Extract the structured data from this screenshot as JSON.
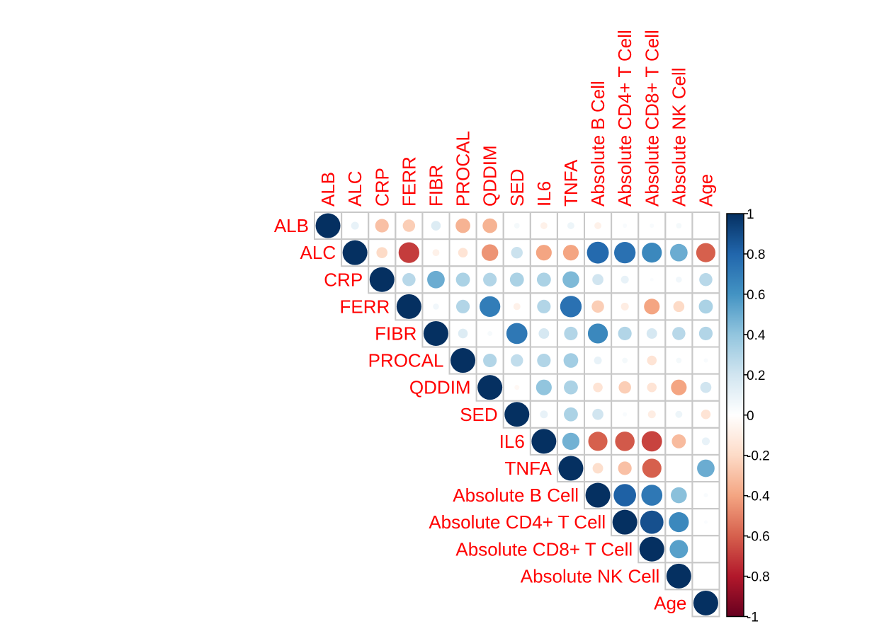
{
  "chart_data": {
    "type": "heatmap",
    "style": "circle",
    "layout": "upper-triangle",
    "variables": [
      "ALB",
      "ALC",
      "CRP",
      "FERR",
      "FIBR",
      "PROCAL",
      "QDDIM",
      "SED",
      "IL6",
      "TNFA",
      "Absolute B Cell",
      "Absolute CD4+ T Cell",
      "Absolute CD8+ T Cell",
      "Absolute NK Cell",
      "Age"
    ],
    "matrix": [
      [
        1.0,
        0.1,
        -0.3,
        -0.25,
        0.15,
        -0.35,
        -0.35,
        0.05,
        -0.08,
        0.08,
        -0.08,
        0.03,
        0.03,
        0.05,
        0.0
      ],
      [
        null,
        1.0,
        -0.2,
        -0.7,
        -0.08,
        -0.15,
        -0.45,
        0.22,
        -0.4,
        -0.4,
        0.78,
        0.75,
        0.65,
        0.5,
        -0.6
      ],
      [
        null,
        null,
        1.0,
        0.28,
        0.5,
        0.32,
        0.3,
        0.32,
        0.32,
        0.45,
        0.2,
        0.1,
        0.02,
        0.06,
        0.28
      ],
      [
        null,
        null,
        null,
        1.0,
        0.06,
        0.3,
        0.7,
        -0.08,
        0.3,
        0.75,
        -0.25,
        -0.1,
        -0.4,
        -0.2,
        0.32
      ],
      [
        null,
        null,
        null,
        null,
        1.0,
        0.15,
        0.04,
        0.72,
        0.18,
        0.3,
        0.65,
        0.3,
        0.18,
        0.28,
        0.3
      ],
      [
        null,
        null,
        null,
        null,
        null,
        1.0,
        0.3,
        0.25,
        0.3,
        0.35,
        0.1,
        0.05,
        -0.15,
        0.05,
        0.03
      ],
      [
        null,
        null,
        null,
        null,
        null,
        null,
        1.0,
        -0.04,
        0.4,
        0.32,
        -0.15,
        -0.25,
        -0.15,
        -0.4,
        0.2
      ],
      [
        null,
        null,
        null,
        null,
        null,
        null,
        null,
        1.0,
        0.1,
        0.32,
        0.2,
        0.03,
        -0.1,
        0.08,
        -0.15
      ],
      [
        null,
        null,
        null,
        null,
        null,
        null,
        null,
        null,
        1.0,
        0.48,
        -0.6,
        -0.62,
        -0.68,
        -0.32,
        0.1
      ],
      [
        null,
        null,
        null,
        null,
        null,
        null,
        null,
        null,
        null,
        1.0,
        -0.18,
        -0.3,
        -0.6,
        0.0,
        0.5
      ],
      [
        null,
        null,
        null,
        null,
        null,
        null,
        null,
        null,
        null,
        null,
        1.0,
        0.82,
        0.72,
        0.42,
        0.03
      ],
      [
        null,
        null,
        null,
        null,
        null,
        null,
        null,
        null,
        null,
        null,
        null,
        1.0,
        0.88,
        0.65,
        0.02
      ],
      [
        null,
        null,
        null,
        null,
        null,
        null,
        null,
        null,
        null,
        null,
        null,
        null,
        1.0,
        0.55,
        0.0
      ],
      [
        null,
        null,
        null,
        null,
        null,
        null,
        null,
        null,
        null,
        null,
        null,
        null,
        null,
        1.0,
        0.0
      ],
      [
        null,
        null,
        null,
        null,
        null,
        null,
        null,
        null,
        null,
        null,
        null,
        null,
        null,
        null,
        1.0
      ]
    ],
    "color_range": [
      -1,
      1
    ],
    "colorbar_ticks": [
      "1",
      "0.8",
      "0.6",
      "0.4",
      "0.2",
      "0",
      "-0.2",
      "-0.4",
      "-0.6",
      "-0.8",
      "-1"
    ],
    "colorbar_tick_values": [
      1,
      0.8,
      0.6,
      0.4,
      0.2,
      0,
      -0.2,
      -0.4,
      -0.6,
      -0.8,
      -1
    ],
    "colorbar_position": "right",
    "palette": [
      "#67001f",
      "#b2182b",
      "#d6604d",
      "#f4a582",
      "#fddbc7",
      "#ffffff",
      "#d1e5f0",
      "#92c5de",
      "#4393c3",
      "#2166ac",
      "#053061"
    ],
    "label_color": "#ff0000",
    "grid": true
  }
}
